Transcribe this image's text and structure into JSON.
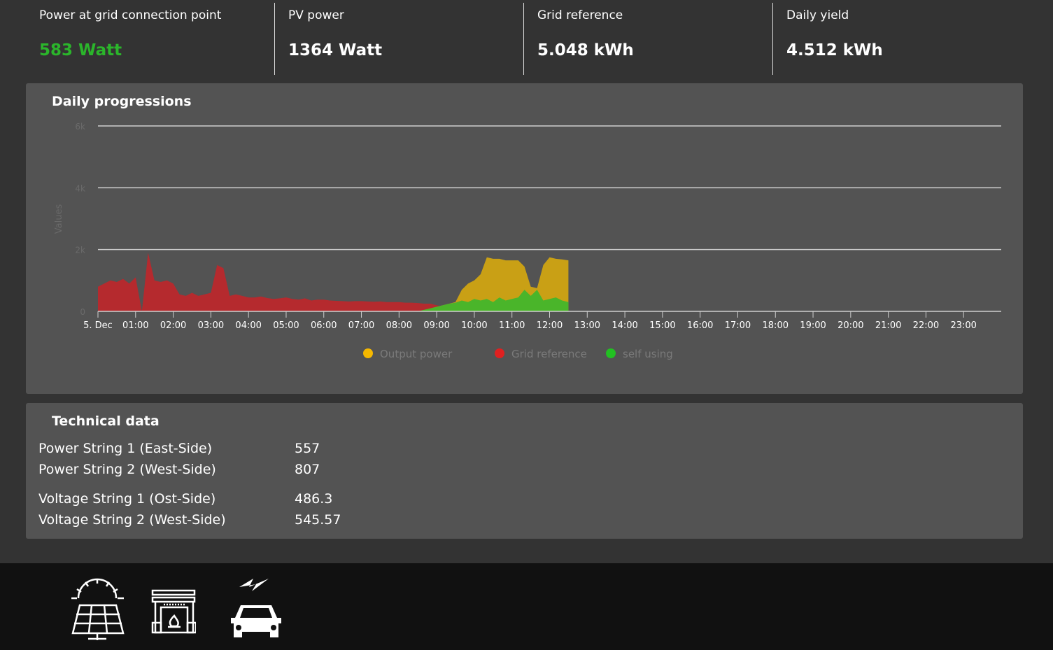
{
  "stats": [
    {
      "label": "Power at grid connection point",
      "value": "583 Watt",
      "color": "#2bb52b"
    },
    {
      "label": "PV power",
      "value": "1364 Watt",
      "color": "#ffffff"
    },
    {
      "label": "Grid reference",
      "value": "5.048 kWh",
      "color": "#ffffff"
    },
    {
      "label": "Daily yield",
      "value": "4.512 kWh",
      "color": "#ffffff"
    }
  ],
  "chart_card": {
    "title": "Daily progressions"
  },
  "chart_data": {
    "type": "area",
    "ylabel": "Values",
    "ylim": [
      0,
      6000
    ],
    "yticks": [
      "0",
      "2k",
      "4k",
      "6k"
    ],
    "xticks": [
      "5. Dec",
      "01:00",
      "02:00",
      "03:00",
      "04:00",
      "05:00",
      "06:00",
      "07:00",
      "08:00",
      "09:00",
      "10:00",
      "11:00",
      "12:00",
      "13:00",
      "14:00",
      "15:00",
      "16:00",
      "17:00",
      "18:00",
      "19:00",
      "20:00",
      "21:00",
      "22:00",
      "23:00"
    ],
    "xrange_hours": [
      0,
      24
    ],
    "grid": true,
    "legend_position": "bottom",
    "sample_interval_minutes": 10,
    "series": [
      {
        "name": "Output power",
        "color": "#c9a015",
        "values": [
          0,
          0,
          0,
          0,
          0,
          0,
          0,
          0,
          0,
          0,
          0,
          0,
          0,
          0,
          0,
          0,
          0,
          0,
          0,
          0,
          0,
          0,
          0,
          0,
          0,
          0,
          0,
          0,
          0,
          0,
          0,
          0,
          0,
          0,
          0,
          0,
          0,
          0,
          0,
          0,
          0,
          0,
          0,
          0,
          0,
          0,
          0,
          0,
          0,
          0,
          0,
          0,
          50,
          100,
          150,
          200,
          250,
          300,
          700,
          900,
          1000,
          1200,
          1750,
          1700,
          1700,
          1650,
          1650,
          1650,
          1450,
          800,
          750,
          1500,
          1750,
          1700,
          1680,
          1650
        ]
      },
      {
        "name": "Grid reference",
        "color": "#b52a2e",
        "values": [
          800,
          900,
          1000,
          950,
          1050,
          900,
          1100,
          0,
          1900,
          1000,
          950,
          1000,
          900,
          550,
          500,
          600,
          500,
          550,
          600,
          1500,
          1400,
          500,
          550,
          500,
          450,
          450,
          480,
          430,
          400,
          420,
          450,
          400,
          380,
          420,
          350,
          380,
          380,
          350,
          340,
          330,
          320,
          330,
          330,
          320,
          310,
          320,
          300,
          300,
          300,
          280,
          280,
          270,
          250,
          250,
          200,
          150,
          100,
          50,
          0,
          0,
          0,
          0,
          0,
          0,
          0,
          0,
          0,
          0,
          0,
          100,
          100,
          0,
          0,
          0,
          0,
          0
        ]
      },
      {
        "name": "self using",
        "color": "#4ab52a",
        "values": [
          0,
          0,
          0,
          0,
          0,
          0,
          0,
          0,
          0,
          0,
          0,
          0,
          0,
          0,
          0,
          0,
          0,
          0,
          0,
          0,
          0,
          0,
          0,
          0,
          0,
          0,
          0,
          0,
          0,
          0,
          0,
          0,
          0,
          0,
          0,
          0,
          0,
          0,
          0,
          0,
          0,
          0,
          0,
          0,
          0,
          0,
          0,
          0,
          0,
          0,
          0,
          0,
          50,
          100,
          150,
          200,
          250,
          280,
          350,
          300,
          400,
          350,
          400,
          300,
          450,
          350,
          400,
          450,
          700,
          500,
          700,
          350,
          400,
          450,
          350,
          300
        ]
      }
    ],
    "legend": [
      {
        "name": "Output power",
        "color": "#f5b800"
      },
      {
        "name": "Grid reference",
        "color": "#e02020"
      },
      {
        "name": "self using",
        "color": "#22c022"
      }
    ]
  },
  "tech_card": {
    "title": "Technical data",
    "rows": [
      {
        "label": "Power String 1 (East-Side)",
        "value": "557"
      },
      {
        "label": "Power String 2 (West-Side)",
        "value": "807"
      },
      {
        "label": "Voltage String 1 (Ost-Side)",
        "value": "486.3"
      },
      {
        "label": "Voltage String 2 (West-Side)",
        "value": "545.57"
      }
    ]
  },
  "footer": {
    "icons": [
      "solar-panel-icon",
      "fireplace-icon",
      "car-charging-icon"
    ]
  }
}
